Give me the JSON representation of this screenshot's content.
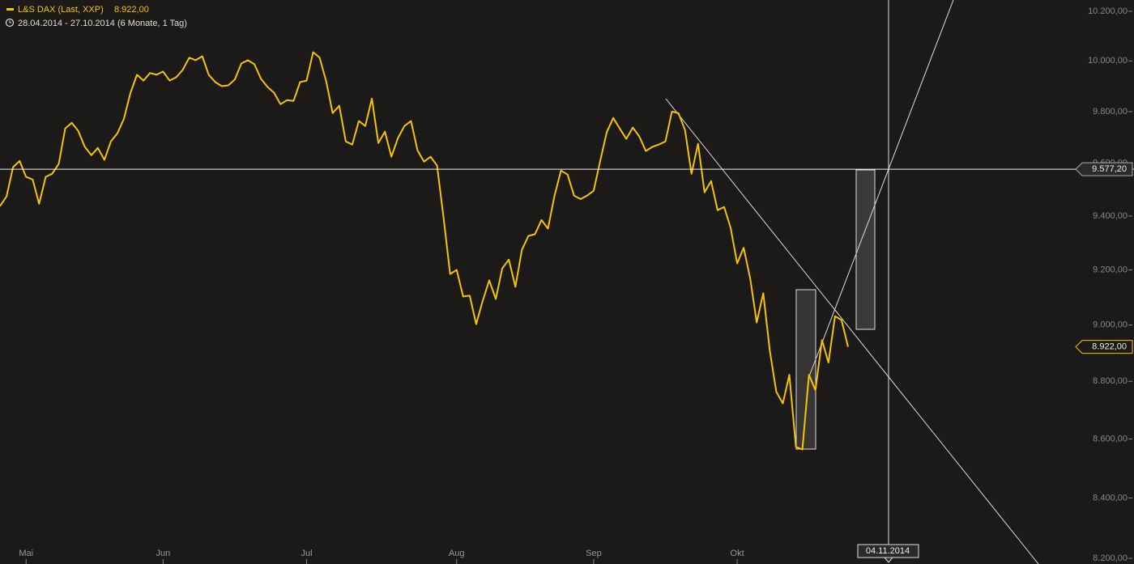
{
  "chart_data": {
    "type": "line",
    "title": "L&S DAX (Last, XXP)",
    "subtitle": "28.04.2014 - 27.10.2014 (6 Monate, 1 Tag)",
    "categories": [
      null,
      null,
      null,
      null,
      "Mai",
      null,
      null,
      null,
      null,
      null,
      null,
      null,
      null,
      null,
      null,
      null,
      null,
      null,
      null,
      null,
      null,
      null,
      null,
      null,
      null,
      "Jun",
      null,
      null,
      null,
      null,
      null,
      null,
      null,
      null,
      null,
      null,
      null,
      null,
      null,
      null,
      null,
      null,
      null,
      null,
      null,
      null,
      null,
      "Jul",
      null,
      null,
      null,
      null,
      null,
      null,
      null,
      null,
      null,
      null,
      null,
      null,
      null,
      null,
      null,
      null,
      null,
      null,
      null,
      null,
      null,
      null,
      "Aug",
      null,
      null,
      null,
      null,
      null,
      null,
      null,
      null,
      null,
      null,
      null,
      null,
      null,
      null,
      null,
      null,
      null,
      null,
      null,
      null,
      "Sep",
      null,
      null,
      null,
      null,
      null,
      null,
      null,
      null,
      null,
      null,
      null,
      null,
      null,
      null,
      null,
      null,
      null,
      null,
      null,
      null,
      null,
      "Okt",
      null,
      null,
      null,
      null,
      null,
      null,
      null,
      null,
      null,
      null,
      null,
      null,
      null,
      null,
      null,
      null,
      null
    ],
    "series": [
      {
        "name": "L&S DAX (Last, XXP)",
        "color": "#f5c400",
        "values": [
          9437,
          9474,
          9585,
          9609,
          9548,
          9538,
          9446,
          9548,
          9560,
          9597,
          9734,
          9756,
          9725,
          9663,
          9631,
          9659,
          9613,
          9684,
          9716,
          9772,
          9874,
          9945,
          9922,
          9952,
          9945,
          9958,
          9922,
          9935,
          9964,
          10013,
          10003,
          10019,
          9945,
          9916,
          9900,
          9903,
          9926,
          9990,
          10003,
          9987,
          9929,
          9897,
          9874,
          9829,
          9845,
          9842,
          9916,
          9922,
          10035,
          10013,
          9919,
          9794,
          9823,
          9684,
          9672,
          9763,
          9744,
          9851,
          9678,
          9722,
          9625,
          9697,
          9744,
          9763,
          9650,
          9606,
          9625,
          9591,
          9391,
          9185,
          9200,
          9103,
          9106,
          9003,
          9088,
          9162,
          9094,
          9206,
          9238,
          9138,
          9274,
          9326,
          9332,
          9385,
          9353,
          9477,
          9572,
          9557,
          9477,
          9464,
          9477,
          9495,
          9609,
          9719,
          9775,
          9734,
          9694,
          9738,
          9703,
          9647,
          9663,
          9672,
          9684,
          9800,
          9794,
          9728,
          9560,
          9675,
          9489,
          9532,
          9422,
          9434,
          9356,
          9224,
          9282,
          9168,
          9009,
          9115,
          8908,
          8763,
          8723,
          8823,
          8573,
          8564,
          8823,
          8769,
          8946,
          8866,
          9032,
          9018,
          8922
        ]
      }
    ],
    "last_value": {
      "value": 8922,
      "label": "8.922,00"
    },
    "hline": {
      "value": 9577.2,
      "label": "9.577,20"
    },
    "date_marker": "04.11.2014",
    "log_scale": true,
    "ylim": [
      8200,
      10200
    ],
    "yticks": [
      {
        "value": 8200,
        "label": "8.200,00"
      },
      {
        "value": 8400,
        "label": "8.400,00"
      },
      {
        "value": 8600,
        "label": "8.600,00"
      },
      {
        "value": 8800,
        "label": "8.800,00"
      },
      {
        "value": 9000,
        "label": "9.000,00"
      },
      {
        "value": 9200,
        "label": "9.200,00"
      },
      {
        "value": 9400,
        "label": "9.400,00"
      },
      {
        "value": 9600,
        "label": "9.600,00"
      },
      {
        "value": 9800,
        "label": "9.800,00"
      },
      {
        "value": 10000,
        "label": "10.000,00"
      },
      {
        "value": 10200,
        "label": "10.200,00"
      }
    ]
  }
}
